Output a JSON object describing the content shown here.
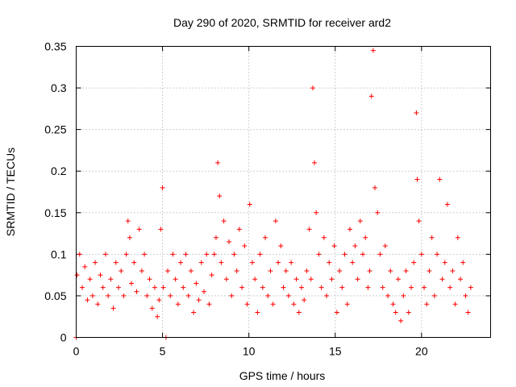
{
  "chart_data": {
    "type": "scatter",
    "title": "Day 290 of 2020, SRMTID for receiver ard2",
    "xlabel": "GPS time / hours",
    "ylabel": "SRMTID / TECUs",
    "xlim": [
      0,
      24
    ],
    "ylim": [
      0,
      0.35
    ],
    "xticks": [
      0,
      5,
      10,
      15,
      20
    ],
    "xtick_labels": [
      "0",
      "5",
      "10",
      "15",
      "20"
    ],
    "yticks": [
      0,
      0.05,
      0.1,
      0.15,
      0.2,
      0.25,
      0.3,
      0.35
    ],
    "ytick_labels": [
      "0",
      "0.05",
      "0.1",
      "0.15",
      "0.2",
      "0.25",
      "0.3",
      "0.35"
    ],
    "grid": true,
    "marker": "+",
    "series": [
      {
        "name": "SRMTID",
        "color": "#ff0000",
        "x": [
          0.0,
          0.05,
          0.2,
          0.35,
          0.5,
          0.65,
          0.8,
          0.95,
          1.1,
          1.25,
          1.4,
          1.55,
          1.7,
          1.85,
          2.0,
          2.15,
          2.3,
          2.45,
          2.6,
          2.75,
          2.9,
          3.0,
          3.1,
          3.2,
          3.35,
          3.5,
          3.65,
          3.8,
          3.95,
          4.1,
          4.25,
          4.4,
          4.55,
          4.7,
          4.8,
          4.9,
          5.0,
          5.05,
          5.2,
          5.3,
          5.45,
          5.6,
          5.75,
          5.9,
          6.05,
          6.2,
          6.35,
          6.5,
          6.65,
          6.8,
          6.95,
          7.1,
          7.25,
          7.4,
          7.55,
          7.7,
          7.85,
          8.0,
          8.1,
          8.2,
          8.3,
          8.4,
          8.55,
          8.7,
          8.85,
          9.0,
          9.15,
          9.3,
          9.45,
          9.6,
          9.75,
          9.9,
          10.05,
          10.2,
          10.35,
          10.5,
          10.65,
          10.8,
          10.95,
          11.1,
          11.25,
          11.4,
          11.55,
          11.7,
          11.85,
          12.0,
          12.15,
          12.3,
          12.45,
          12.6,
          12.75,
          12.9,
          13.05,
          13.2,
          13.35,
          13.5,
          13.6,
          13.7,
          13.8,
          13.9,
          14.05,
          14.2,
          14.35,
          14.5,
          14.65,
          14.8,
          14.95,
          15.1,
          15.25,
          15.4,
          15.55,
          15.7,
          15.85,
          16.0,
          16.15,
          16.3,
          16.45,
          16.6,
          16.75,
          16.9,
          17.0,
          17.1,
          17.2,
          17.3,
          17.45,
          17.6,
          17.75,
          17.9,
          18.05,
          18.2,
          18.35,
          18.5,
          18.65,
          18.8,
          18.95,
          19.1,
          19.25,
          19.4,
          19.55,
          19.7,
          19.75,
          19.85,
          20.0,
          20.15,
          20.3,
          20.45,
          20.6,
          20.75,
          20.9,
          21.05,
          21.2,
          21.35,
          21.5,
          21.65,
          21.8,
          21.95,
          22.1,
          22.25,
          22.4,
          22.55,
          22.7,
          22.85
        ],
        "y": [
          0.0,
          0.075,
          0.1,
          0.06,
          0.085,
          0.045,
          0.07,
          0.05,
          0.09,
          0.04,
          0.075,
          0.06,
          0.1,
          0.05,
          0.07,
          0.035,
          0.09,
          0.06,
          0.08,
          0.05,
          0.1,
          0.14,
          0.12,
          0.065,
          0.09,
          0.055,
          0.13,
          0.08,
          0.1,
          0.05,
          0.07,
          0.035,
          0.06,
          0.025,
          0.045,
          0.13,
          0.18,
          0.06,
          0.0,
          0.08,
          0.05,
          0.1,
          0.07,
          0.04,
          0.09,
          0.06,
          0.1,
          0.05,
          0.08,
          0.03,
          0.065,
          0.045,
          0.09,
          0.055,
          0.1,
          0.04,
          0.075,
          0.1,
          0.12,
          0.21,
          0.17,
          0.09,
          0.14,
          0.07,
          0.115,
          0.05,
          0.1,
          0.08,
          0.13,
          0.06,
          0.11,
          0.04,
          0.16,
          0.09,
          0.07,
          0.03,
          0.1,
          0.06,
          0.12,
          0.05,
          0.08,
          0.04,
          0.14,
          0.09,
          0.11,
          0.06,
          0.08,
          0.05,
          0.09,
          0.04,
          0.07,
          0.03,
          0.06,
          0.045,
          0.08,
          0.13,
          0.07,
          0.3,
          0.21,
          0.15,
          0.1,
          0.06,
          0.12,
          0.05,
          0.09,
          0.07,
          0.11,
          0.03,
          0.08,
          0.06,
          0.1,
          0.04,
          0.13,
          0.09,
          0.11,
          0.07,
          0.14,
          0.1,
          0.12,
          0.06,
          0.08,
          0.29,
          0.345,
          0.18,
          0.15,
          0.1,
          0.06,
          0.11,
          0.05,
          0.08,
          0.04,
          0.03,
          0.07,
          0.02,
          0.05,
          0.08,
          0.03,
          0.06,
          0.09,
          0.27,
          0.19,
          0.14,
          0.1,
          0.06,
          0.04,
          0.08,
          0.12,
          0.05,
          0.1,
          0.19,
          0.07,
          0.09,
          0.16,
          0.06,
          0.08,
          0.04,
          0.12,
          0.07,
          0.09,
          0.05,
          0.03,
          0.06
        ]
      }
    ]
  }
}
